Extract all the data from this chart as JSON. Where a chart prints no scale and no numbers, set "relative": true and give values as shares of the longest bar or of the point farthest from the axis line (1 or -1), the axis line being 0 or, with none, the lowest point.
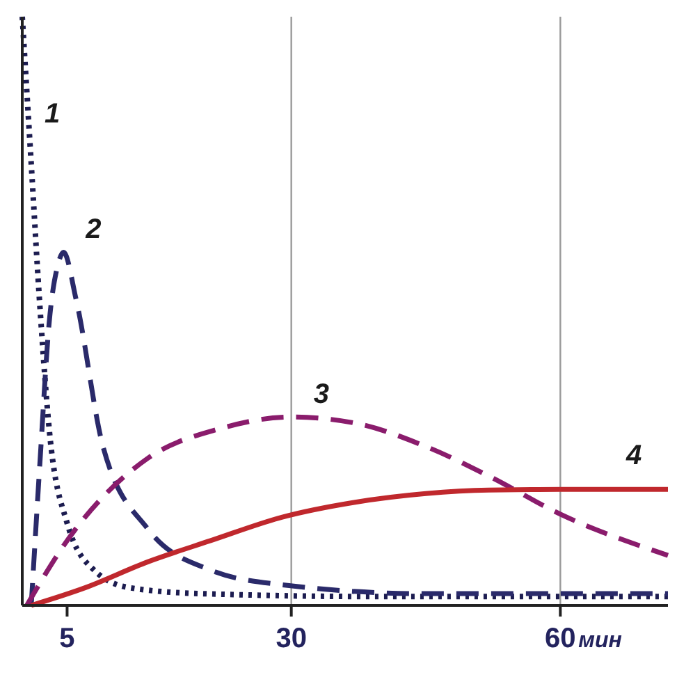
{
  "chart_data": {
    "type": "line",
    "relative": true,
    "xlabel": "мин",
    "xlim": [
      0,
      72
    ],
    "xticks": [
      5,
      30,
      60
    ],
    "ref_lines": [
      {
        "axis": "x",
        "value": 30,
        "color": "#9a9a9a"
      },
      {
        "axis": "x",
        "value": 60,
        "color": "#9a9a9a"
      }
    ],
    "series": [
      {
        "name": "1",
        "color": "#1c1c50",
        "line_style": "dotted",
        "x": [
          0,
          1,
          2,
          3,
          5,
          8,
          12,
          20,
          40,
          72
        ],
        "values": [
          1,
          0.75,
          0.5,
          0.3,
          0.14,
          0.06,
          0.03,
          0.02,
          0.015,
          0.015
        ]
      },
      {
        "name": "2",
        "color": "#2a2a6a",
        "line_style": "dashed",
        "x": [
          1,
          2,
          3,
          4,
          4.6,
          6,
          9,
          14,
          21,
          29,
          45,
          72
        ],
        "values": [
          0,
          0.25,
          0.48,
          0.58,
          0.6,
          0.52,
          0.27,
          0.13,
          0.06,
          0.035,
          0.02,
          0.02
        ]
      },
      {
        "name": "3",
        "color": "#8a1c6c",
        "line_style": "dashed",
        "x": [
          0.5,
          5,
          14,
          22,
          30,
          37,
          45,
          52,
          60,
          72
        ],
        "values": [
          0,
          0.11,
          0.25,
          0.3,
          0.32,
          0.31,
          0.27,
          0.22,
          0.155,
          0.085
        ]
      },
      {
        "name": "4",
        "color": "#c0282d",
        "line_style": "solid",
        "x": [
          1,
          7,
          14,
          21,
          29,
          37,
          45,
          52,
          60,
          72
        ],
        "values": [
          0,
          0.03,
          0.074,
          0.11,
          0.15,
          0.175,
          0.19,
          0.196,
          0.197,
          0.197
        ]
      }
    ]
  }
}
